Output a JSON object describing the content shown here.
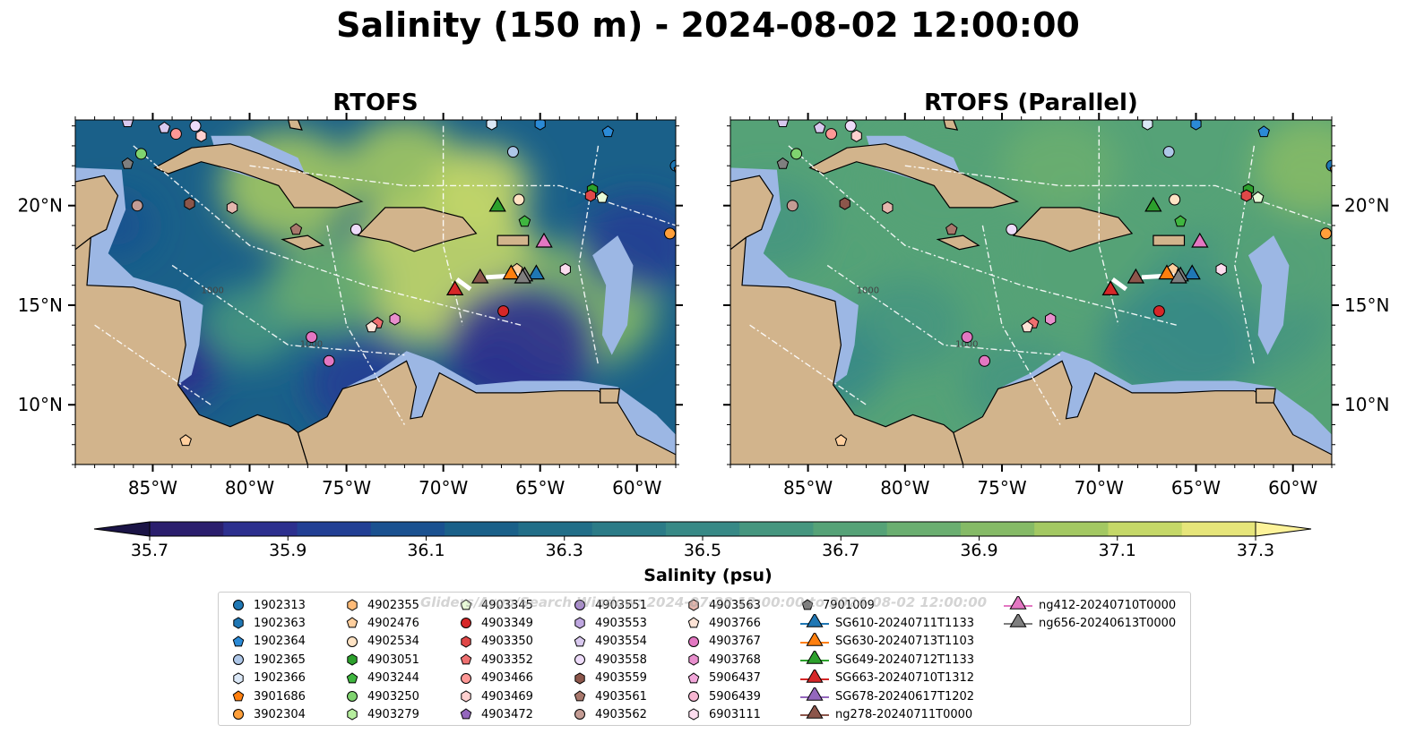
{
  "title": "Salinity (150 m) - 2024-08-02 12:00:00",
  "watermark": "Gliders/Argo/Search Window: 2024-07-28 12:00:00 to 2024-08-02 12:00:00",
  "chart_data": {
    "type": "heatmap",
    "panels": [
      {
        "title": "RTOFS",
        "lat_labels": "left",
        "field": "rtofs"
      },
      {
        "title": "RTOFS (Parallel)",
        "lat_labels": "right",
        "field": "parallel"
      }
    ],
    "lon_range": [
      -89,
      -58
    ],
    "lat_range": [
      7,
      24.3
    ],
    "lon_ticks": [
      -85,
      -80,
      -75,
      -70,
      -65,
      -60
    ],
    "lon_tick_labels": [
      "85°W",
      "80°W",
      "75°W",
      "70°W",
      "65°W",
      "60°W"
    ],
    "lat_ticks": [
      10,
      15,
      20
    ],
    "lat_tick_labels": [
      "10°N",
      "15°N",
      "20°N"
    ],
    "contour_labels": [
      "1000",
      "1000"
    ],
    "colorbar": {
      "label": "Salinity (psu)",
      "min": 35.7,
      "max": 37.3,
      "step": 0.1,
      "ticks": [
        35.7,
        35.9,
        36.1,
        36.3,
        36.5,
        36.7,
        36.9,
        37.1,
        37.3
      ],
      "tick_labels": [
        "35.7",
        "35.9",
        "36.1",
        "36.3",
        "36.5",
        "36.7",
        "36.9",
        "37.1",
        "37.3"
      ],
      "extend": "both",
      "colors": [
        "#2a1e6d",
        "#2c2f8e",
        "#223f94",
        "#1a5190",
        "#1a6089",
        "#216e88",
        "#2b7b87",
        "#378986",
        "#45967f",
        "#55a277",
        "#6aae70",
        "#85ba66",
        "#a3c862",
        "#c5d868",
        "#e6e57a"
      ],
      "ocean_color": "#9cb7e4",
      "land_color": "#d2b48c"
    },
    "legend": {
      "columns": 7,
      "items": [
        {
          "label": "1902313",
          "marker": "circle",
          "color": "#1f77b4"
        },
        {
          "label": "1902363",
          "marker": "hexagon",
          "color": "#1f77b4"
        },
        {
          "label": "1902364",
          "marker": "pentagon",
          "color": "#2b8ad6"
        },
        {
          "label": "1902365",
          "marker": "circle",
          "color": "#aec7e8"
        },
        {
          "label": "1902366",
          "marker": "hexagon",
          "color": "#dbe8f7"
        },
        {
          "label": "3901686",
          "marker": "pentagon",
          "color": "#ff7f0e"
        },
        {
          "label": "3902304",
          "marker": "circle",
          "color": "#ff9f3a"
        },
        {
          "label": "4902355",
          "marker": "hexagon",
          "color": "#ffbb78"
        },
        {
          "label": "4902476",
          "marker": "pentagon",
          "color": "#ffcf9e"
        },
        {
          "label": "4902534",
          "marker": "circle",
          "color": "#ffe3c4"
        },
        {
          "label": "4903051",
          "marker": "hexagon",
          "color": "#2ca02c"
        },
        {
          "label": "4903244",
          "marker": "pentagon",
          "color": "#3fb63f"
        },
        {
          "label": "4903250",
          "marker": "circle",
          "color": "#7fd36f"
        },
        {
          "label": "4903279",
          "marker": "hexagon",
          "color": "#b6ee9e"
        },
        {
          "label": "4903345",
          "marker": "pentagon",
          "color": "#e8fbd8"
        },
        {
          "label": "4903349",
          "marker": "circle",
          "color": "#d62728"
        },
        {
          "label": "4903350",
          "marker": "hexagon",
          "color": "#e04848"
        },
        {
          "label": "4903352",
          "marker": "pentagon",
          "color": "#ef7070"
        },
        {
          "label": "4903466",
          "marker": "circle",
          "color": "#ff9896"
        },
        {
          "label": "4903469",
          "marker": "hexagon",
          "color": "#ffd0cf"
        },
        {
          "label": "4903472",
          "marker": "pentagon",
          "color": "#9467bd"
        },
        {
          "label": "4903551",
          "marker": "circle",
          "color": "#a98bd0"
        },
        {
          "label": "4903553",
          "marker": "hexagon",
          "color": "#bfa7e0"
        },
        {
          "label": "4903554",
          "marker": "pentagon",
          "color": "#d9c9ef"
        },
        {
          "label": "4903558",
          "marker": "circle",
          "color": "#eedcfa"
        },
        {
          "label": "4903559",
          "marker": "hexagon",
          "color": "#8c564b"
        },
        {
          "label": "4903561",
          "marker": "pentagon",
          "color": "#a8786c"
        },
        {
          "label": "4903562",
          "marker": "circle",
          "color": "#c49c94"
        },
        {
          "label": "4903563",
          "marker": "hexagon",
          "color": "#e4b6ad"
        },
        {
          "label": "4903766",
          "marker": "pentagon",
          "color": "#fde3d6"
        },
        {
          "label": "4903767",
          "marker": "circle",
          "color": "#e377c2"
        },
        {
          "label": "4903768",
          "marker": "hexagon",
          "color": "#e88fcd"
        },
        {
          "label": "5906437",
          "marker": "pentagon",
          "color": "#f2a7da"
        },
        {
          "label": "5906439",
          "marker": "circle",
          "color": "#f7b6d2"
        },
        {
          "label": "6903111",
          "marker": "hexagon",
          "color": "#fcdcee"
        },
        {
          "label": "7901009",
          "marker": "pentagon",
          "color": "#7f7f7f"
        },
        {
          "label": "SG610-20240711T1133",
          "marker": "triangle-line",
          "color": "#1f77b4"
        },
        {
          "label": "SG630-20240713T1103",
          "marker": "triangle-line",
          "color": "#ff7f0e"
        },
        {
          "label": "SG649-20240712T1133",
          "marker": "triangle-line",
          "color": "#2ca02c"
        },
        {
          "label": "SG663-20240710T1312",
          "marker": "triangle-line",
          "color": "#d62728"
        },
        {
          "label": "SG678-20240617T1202",
          "marker": "triangle-line",
          "color": "#9467bd"
        },
        {
          "label": "ng278-20240711T0000",
          "marker": "triangle-line",
          "color": "#8c564b"
        },
        {
          "label": "ng412-20240710T0000",
          "marker": "triangle-line",
          "color": "#e377c2"
        },
        {
          "label": "ng656-20240613T0000",
          "marker": "triangle-line",
          "color": "#7f7f7f"
        }
      ]
    },
    "observations": [
      {
        "lon": -86.3,
        "lat": 24.2,
        "marker": "pentagon",
        "color": "#d9c9ef"
      },
      {
        "lon": -84.4,
        "lat": 23.9,
        "marker": "pentagon",
        "color": "#d9c9ef"
      },
      {
        "lon": -83.8,
        "lat": 23.6,
        "marker": "circle",
        "color": "#ff9896"
      },
      {
        "lon": -82.8,
        "lat": 24.0,
        "marker": "circle",
        "color": "#eedcfa"
      },
      {
        "lon": -82.5,
        "lat": 23.5,
        "marker": "hexagon",
        "color": "#ffd0cf"
      },
      {
        "lon": -85.6,
        "lat": 22.6,
        "marker": "circle",
        "color": "#7fd36f"
      },
      {
        "lon": -86.3,
        "lat": 22.1,
        "marker": "pentagon",
        "color": "#7f7f7f"
      },
      {
        "lon": -85.8,
        "lat": 20.0,
        "marker": "circle",
        "color": "#c49c94"
      },
      {
        "lon": -83.1,
        "lat": 20.1,
        "marker": "hexagon",
        "color": "#8c564b"
      },
      {
        "lon": -80.9,
        "lat": 19.9,
        "marker": "hexagon",
        "color": "#e4b6ad"
      },
      {
        "lon": -77.6,
        "lat": 18.8,
        "marker": "pentagon",
        "color": "#a8786c"
      },
      {
        "lon": -74.5,
        "lat": 18.8,
        "marker": "circle",
        "color": "#eedcfa"
      },
      {
        "lon": -67.5,
        "lat": 24.1,
        "marker": "hexagon",
        "color": "#dbe8f7"
      },
      {
        "lon": -65.0,
        "lat": 24.1,
        "marker": "hexagon",
        "color": "#2b8ad6"
      },
      {
        "lon": -66.4,
        "lat": 22.7,
        "marker": "circle",
        "color": "#aec7e8"
      },
      {
        "lon": -61.5,
        "lat": 23.7,
        "marker": "pentagon",
        "color": "#2b8ad6"
      },
      {
        "lon": -58.0,
        "lat": 22.0,
        "marker": "circle",
        "color": "#1f77b4"
      },
      {
        "lon": -57.8,
        "lat": 21.8,
        "marker": "pentagon",
        "color": "#ff7f0e"
      },
      {
        "lon": -66.1,
        "lat": 20.3,
        "marker": "circle",
        "color": "#ffe3c4"
      },
      {
        "lon": -62.3,
        "lat": 20.8,
        "marker": "hexagon",
        "color": "#2ca02c"
      },
      {
        "lon": -62.4,
        "lat": 20.5,
        "marker": "hexagon",
        "color": "#e04848"
      },
      {
        "lon": -61.8,
        "lat": 20.4,
        "marker": "pentagon",
        "color": "#e8fbd8"
      },
      {
        "lon": -65.8,
        "lat": 19.2,
        "marker": "pentagon",
        "color": "#3fb63f"
      },
      {
        "lon": -58.3,
        "lat": 18.6,
        "marker": "circle",
        "color": "#ff9f3a"
      },
      {
        "lon": -63.7,
        "lat": 16.8,
        "marker": "hexagon",
        "color": "#fcdcee"
      },
      {
        "lon": -66.2,
        "lat": 16.8,
        "marker": "pentagon",
        "color": "#ffcf9e"
      },
      {
        "lon": -66.9,
        "lat": 14.7,
        "marker": "circle",
        "color": "#d62728"
      },
      {
        "lon": -72.5,
        "lat": 14.3,
        "marker": "hexagon",
        "color": "#e88fcd"
      },
      {
        "lon": -73.4,
        "lat": 14.1,
        "marker": "pentagon",
        "color": "#ef7070"
      },
      {
        "lon": -73.7,
        "lat": 13.9,
        "marker": "pentagon",
        "color": "#fde3d6"
      },
      {
        "lon": -76.8,
        "lat": 13.4,
        "marker": "circle",
        "color": "#e377c2"
      },
      {
        "lon": -75.9,
        "lat": 12.2,
        "marker": "circle",
        "color": "#e377c2"
      },
      {
        "lon": -83.3,
        "lat": 8.2,
        "marker": "pentagon",
        "color": "#ffcf9e"
      }
    ],
    "gliders": [
      {
        "lon": -67.2,
        "lat": 20.0,
        "color": "#2ca02c"
      },
      {
        "lon": -69.4,
        "lat": 15.8,
        "color": "#d62728"
      },
      {
        "lon": -68.1,
        "lat": 16.4,
        "color": "#8c564b"
      },
      {
        "lon": -66.5,
        "lat": 16.6,
        "color": "#ff7f0e"
      },
      {
        "lon": -65.2,
        "lat": 16.6,
        "color": "#1f77b4"
      },
      {
        "lon": -65.8,
        "lat": 16.5,
        "color": "#7f7f7f"
      },
      {
        "lon": -65.9,
        "lat": 16.4,
        "color": "#7f7f7f"
      },
      {
        "lon": -64.8,
        "lat": 18.2,
        "color": "#e377c2"
      }
    ]
  }
}
